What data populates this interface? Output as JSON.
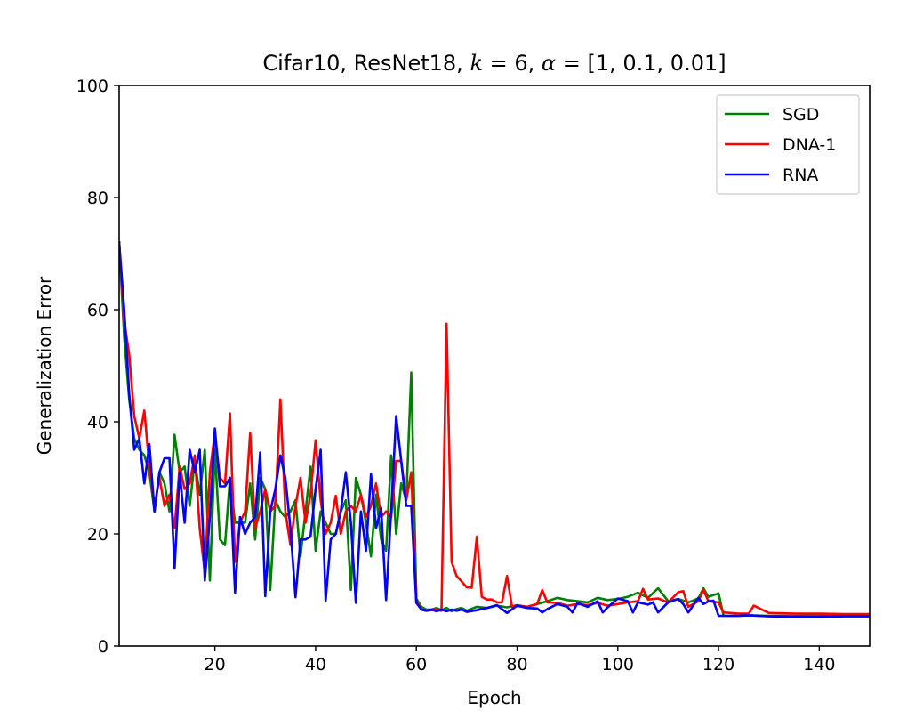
{
  "chart_data": {
    "type": "line",
    "title_parts": {
      "prefix": "Cifar10, ResNet18, ",
      "k_symbol": "k",
      "k_value": " = 6, ",
      "alpha_symbol": "α",
      "alpha_value": " = [1, 0.1, 0.01]"
    },
    "xlabel": "Epoch",
    "ylabel": "Generalization Error",
    "xlim": [
      1,
      150
    ],
    "ylim": [
      0,
      100
    ],
    "xticks": [
      20,
      40,
      60,
      80,
      100,
      120,
      140
    ],
    "yticks": [
      0,
      20,
      40,
      60,
      80,
      100
    ],
    "grid": false,
    "legend_position": "top-right",
    "series": [
      {
        "name": "SGD",
        "color": "#008000",
        "x": [
          1,
          2,
          3,
          4,
          5,
          6,
          7,
          8,
          9,
          10,
          11,
          12,
          13,
          14,
          15,
          16,
          17,
          18,
          19,
          20,
          21,
          22,
          23,
          24,
          25,
          26,
          27,
          28,
          29,
          30,
          31,
          32,
          33,
          34,
          35,
          36,
          37,
          38,
          39,
          40,
          41,
          42,
          43,
          44,
          45,
          46,
          47,
          48,
          49,
          50,
          51,
          52,
          53,
          54,
          55,
          56,
          57,
          58,
          59,
          60,
          61,
          62,
          63,
          64,
          65,
          66,
          67,
          68,
          69,
          70,
          72,
          74,
          76,
          78,
          80,
          82,
          84,
          86,
          88,
          90,
          92,
          94,
          96,
          98,
          100,
          102,
          104,
          106,
          108,
          110,
          112,
          114,
          116,
          117,
          118,
          120,
          121,
          124,
          126,
          130,
          135,
          140,
          145,
          150
        ],
        "y": [
          72,
          55,
          44,
          37,
          35,
          34,
          31,
          24,
          31,
          29,
          24,
          37.7,
          31,
          32,
          25,
          33,
          27,
          35,
          11.7,
          35,
          19,
          18,
          30,
          22,
          22,
          22,
          29,
          19,
          30,
          28,
          10,
          26,
          24,
          23,
          24,
          26,
          16,
          24,
          32,
          17,
          24,
          22,
          20,
          20,
          24,
          26,
          10,
          30,
          27,
          22,
          16,
          27,
          19,
          17,
          34,
          20,
          29,
          26,
          48.8,
          8.5,
          7,
          6.5,
          6.5,
          6.8,
          6.4,
          6.8,
          6.2,
          6.6,
          6.8,
          6.3,
          7,
          6.8,
          7.2,
          6.9,
          7.3,
          7,
          7.5,
          8,
          8.6,
          8.2,
          8,
          7.8,
          8.6,
          8.2,
          8.4,
          8.8,
          9.5,
          8.6,
          10.3,
          8,
          8.4,
          7.8,
          8.5,
          10.3,
          8.8,
          9.4,
          5.4,
          5.4,
          5.5,
          5.4,
          5.4,
          5.5,
          5.4,
          5.4
        ]
      },
      {
        "name": "DNA-1",
        "color": "#ff0000",
        "x": [
          1,
          2,
          3,
          4,
          5,
          6,
          7,
          8,
          9,
          10,
          11,
          12,
          13,
          14,
          15,
          16,
          17,
          18,
          19,
          20,
          21,
          22,
          23,
          24,
          25,
          26,
          27,
          28,
          29,
          30,
          31,
          32,
          33,
          34,
          35,
          36,
          37,
          38,
          39,
          40,
          41,
          42,
          43,
          44,
          45,
          46,
          47,
          48,
          49,
          50,
          51,
          52,
          53,
          54,
          55,
          56,
          57,
          58,
          59,
          60,
          61,
          62,
          63,
          64,
          65,
          66,
          67,
          68,
          69,
          70,
          71,
          72,
          73,
          74,
          75,
          76,
          77,
          78,
          79,
          80,
          82,
          84,
          85,
          86,
          88,
          90,
          92,
          94,
          96,
          98,
          100,
          102,
          104,
          105,
          106,
          108,
          110,
          112,
          113,
          114,
          116,
          117,
          118,
          120,
          121,
          124,
          126,
          127,
          130,
          135,
          140,
          145,
          150
        ],
        "y": [
          72,
          58,
          52,
          41,
          37,
          42,
          32,
          25,
          30,
          25,
          27,
          21,
          32,
          28,
          29,
          34,
          21,
          13,
          31,
          38,
          30,
          29,
          41.5,
          15,
          22,
          24,
          38,
          21,
          24,
          28,
          24,
          25,
          44,
          24,
          18,
          25,
          30,
          22,
          27,
          36.7,
          26,
          20,
          22,
          26.8,
          20,
          24,
          25,
          24,
          27,
          23,
          25,
          29,
          23,
          24,
          23,
          33,
          33,
          26,
          31,
          8,
          6.5,
          6.3,
          6.4,
          6.5,
          6.3,
          57.5,
          15,
          12.5,
          11.5,
          10.5,
          10.4,
          19.5,
          8.8,
          8.3,
          8.3,
          7.8,
          7.8,
          12.5,
          7,
          7.2,
          7,
          7.5,
          10,
          7.8,
          7.7,
          7.2,
          7.5,
          7.3,
          7.7,
          7.2,
          7.5,
          7.8,
          8,
          10.2,
          8.3,
          8.5,
          7.8,
          9.6,
          9.8,
          7,
          8,
          10,
          8,
          7.8,
          6,
          5.8,
          5.8,
          7.2,
          5.9,
          5.8,
          5.8,
          5.7,
          5.7
        ]
      },
      {
        "name": "RNA",
        "color": "#0000ff",
        "x": [
          1,
          2,
          3,
          4,
          5,
          6,
          7,
          8,
          9,
          10,
          11,
          12,
          13,
          14,
          15,
          16,
          17,
          18,
          19,
          20,
          21,
          22,
          23,
          24,
          25,
          26,
          27,
          28,
          29,
          30,
          31,
          32,
          33,
          34,
          35,
          36,
          37,
          38,
          39,
          40,
          41,
          42,
          43,
          44,
          45,
          46,
          47,
          48,
          49,
          50,
          51,
          52,
          53,
          54,
          55,
          56,
          57,
          58,
          59,
          60,
          61,
          62,
          63,
          64,
          65,
          66,
          67,
          68,
          69,
          70,
          72,
          74,
          76,
          78,
          80,
          82,
          84,
          85,
          86,
          88,
          90,
          91,
          92,
          94,
          96,
          97,
          98,
          100,
          102,
          103,
          104,
          106,
          107,
          108,
          110,
          112,
          113,
          114,
          116,
          117,
          118,
          119,
          120,
          121,
          124,
          126,
          130,
          135,
          140,
          145,
          150
        ],
        "y": [
          72,
          60,
          45,
          35,
          37,
          29,
          36,
          24,
          31,
          33.5,
          33.5,
          13.8,
          31,
          22,
          35,
          31,
          35,
          11.7,
          23,
          38.8,
          28.5,
          28.5,
          30,
          9.5,
          23,
          20,
          22,
          23,
          34.5,
          8.9,
          24,
          28,
          34,
          30,
          21,
          8.7,
          19,
          19,
          19.5,
          28,
          35,
          8.1,
          19,
          20,
          24,
          31,
          22,
          7.7,
          24,
          17,
          30.7,
          21,
          24.7,
          8.2,
          24,
          41,
          33,
          25,
          25,
          7.7,
          6.5,
          6.3,
          6.5,
          6.2,
          6.5,
          6.2,
          6.5,
          6.3,
          6.5,
          6.1,
          6.4,
          6.8,
          7.3,
          5.9,
          7.2,
          6.8,
          6.7,
          6,
          6.6,
          7.5,
          7,
          6,
          7.7,
          7,
          8,
          6,
          6.9,
          8.5,
          8,
          6,
          7.8,
          7.4,
          7.8,
          6,
          7.8,
          8.4,
          7.5,
          6,
          8.6,
          7.5,
          8,
          8.1,
          5.4,
          5.4,
          5.4,
          5.5,
          5.3,
          5.2,
          5.2,
          5.3,
          5.3
        ]
      }
    ]
  }
}
